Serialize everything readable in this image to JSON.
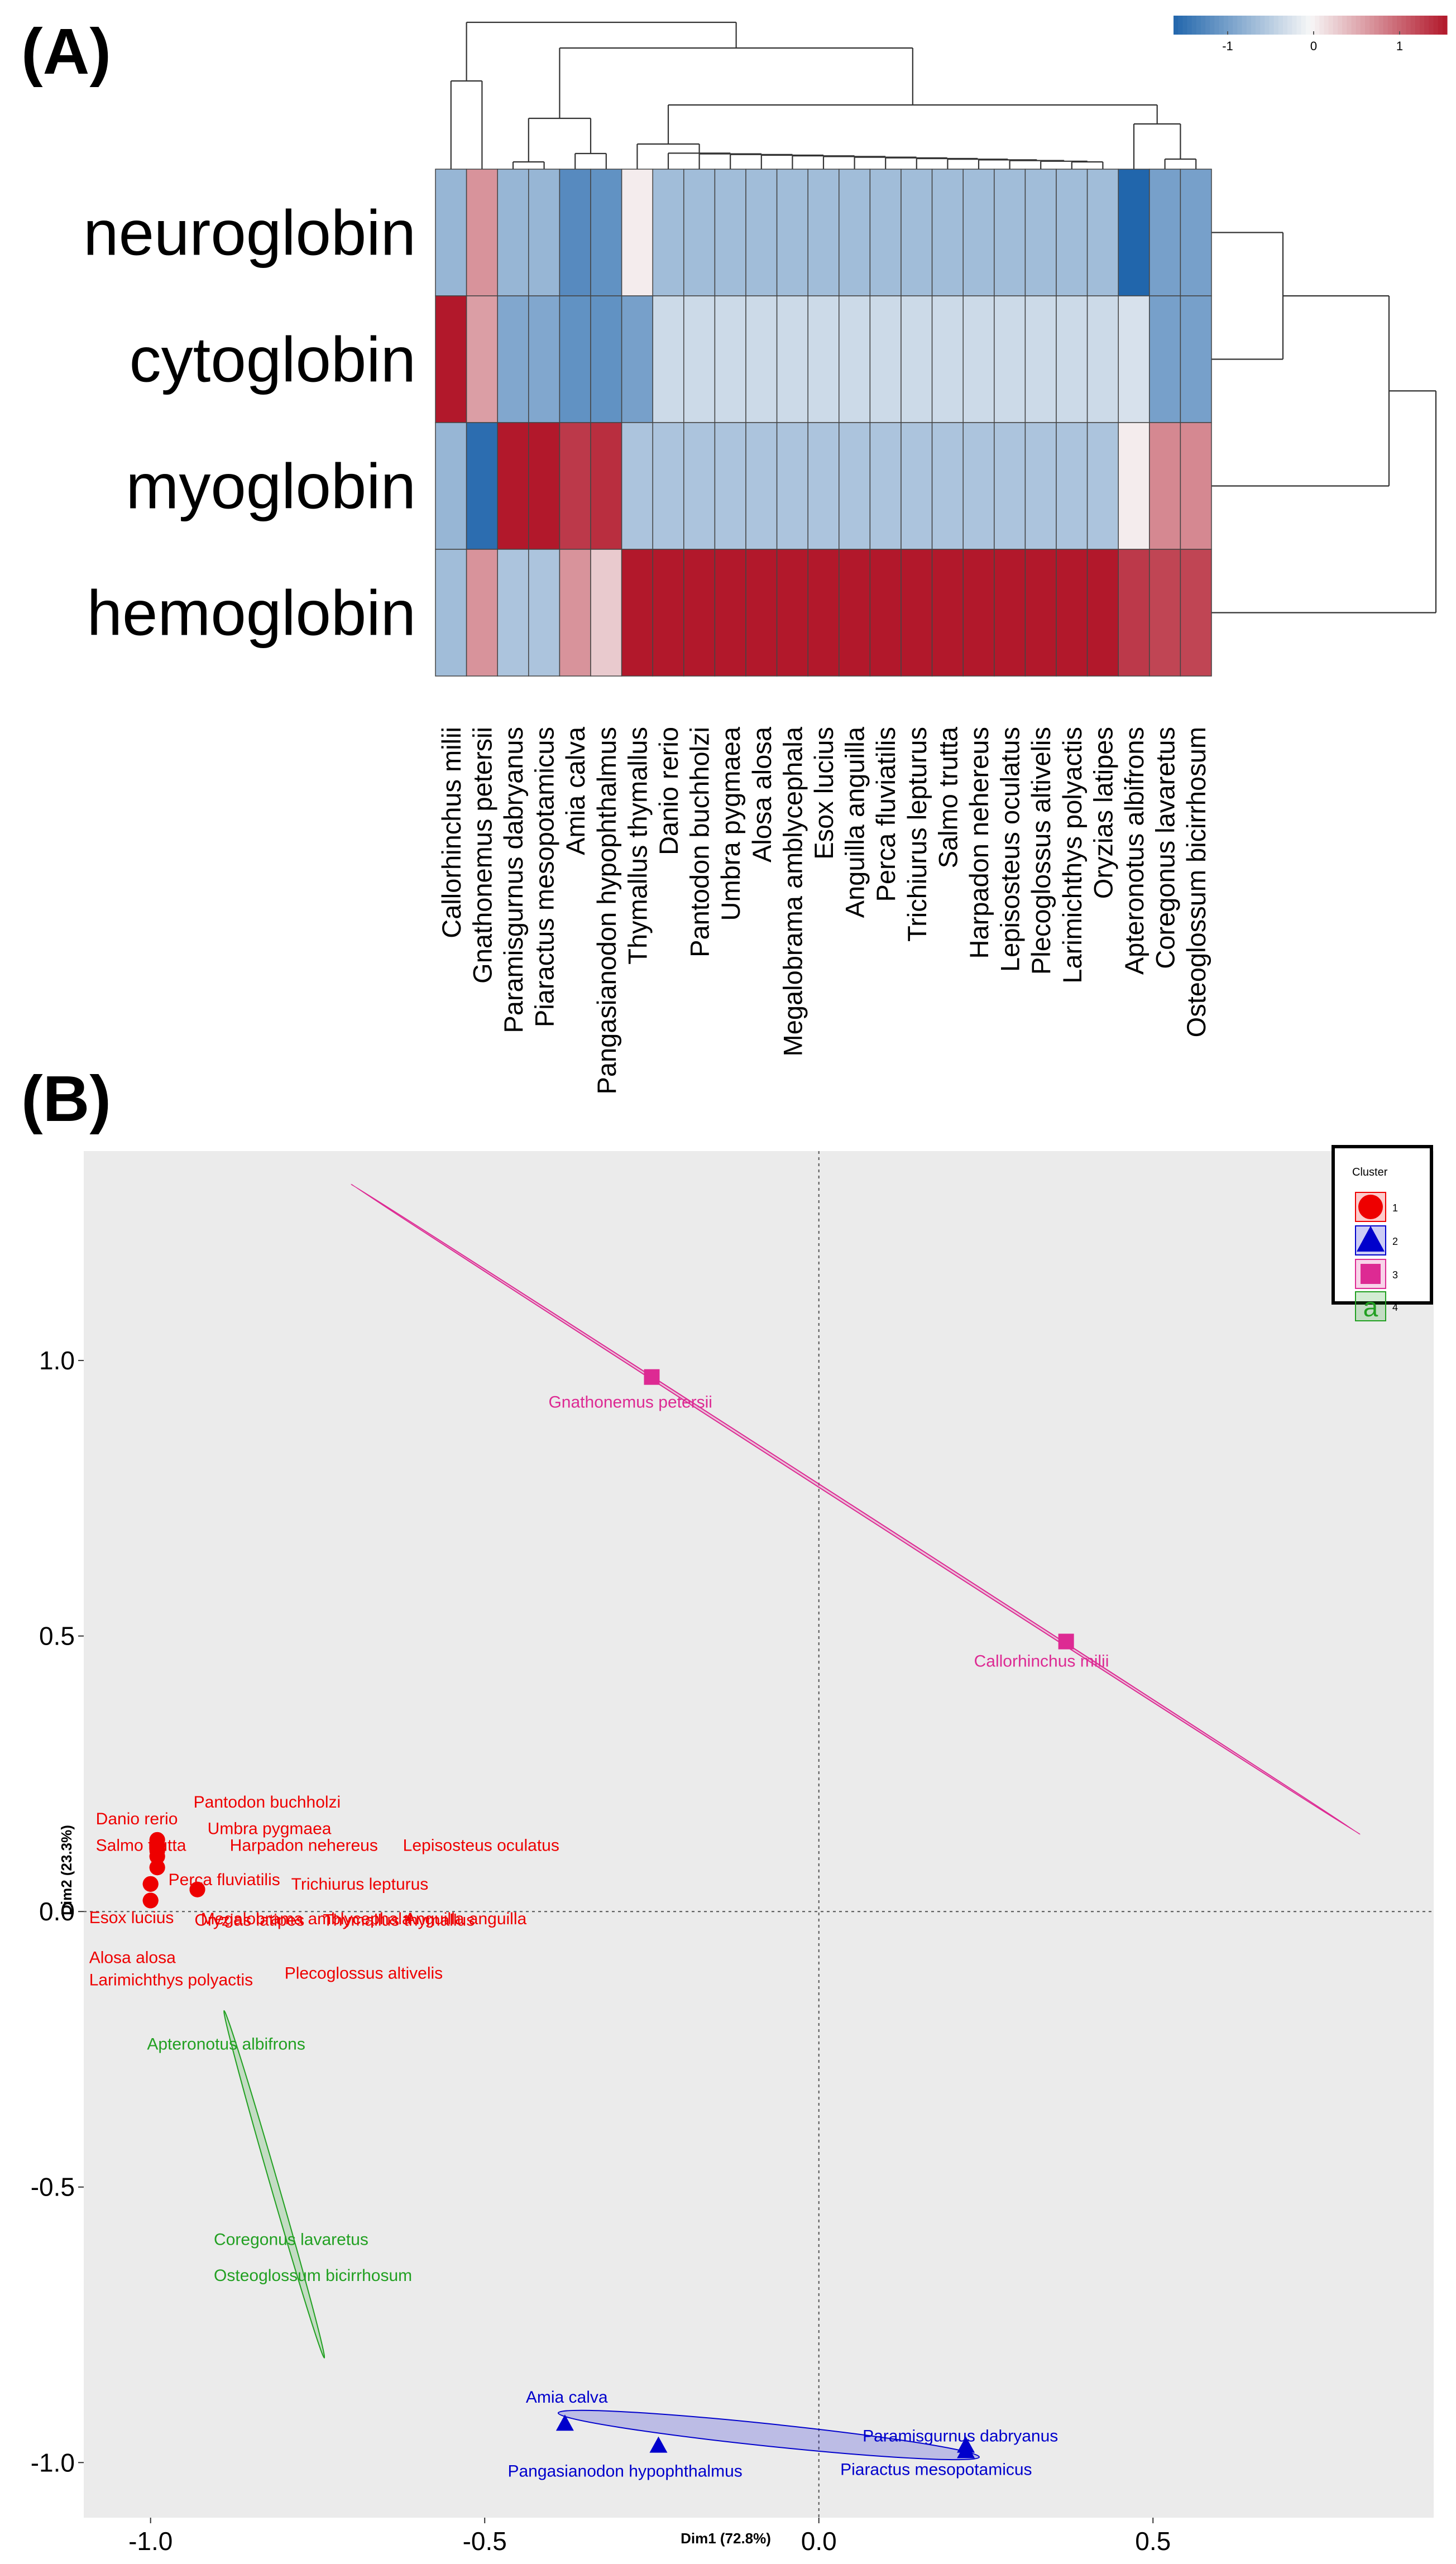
{
  "panel_labels": {
    "a": "(A)",
    "b": "(B)"
  },
  "colors": {
    "low": "#2166ac",
    "mid": "#f7f7f7",
    "high": "#b2182b",
    "cluster_1": "#ee0000",
    "cluster_2": "#0000cc",
    "cluster_3": "#dd2a93",
    "cluster_4": "#22a022",
    "plot_bg": "#ebebeb"
  },
  "chart_data": [
    {
      "type": "heatmap",
      "title": "",
      "rows": [
        "neuroglobin",
        "cytoglobin",
        "myoglobin",
        "hemoglobin"
      ],
      "columns": [
        "Callorhinchus milii",
        "Gnathonemus petersii",
        "Paramisgurnus dabryanus",
        "Piaractus mesopotamicus",
        "Amia calva",
        "Pangasianodon hypophthalmus",
        "Thymallus thymallus",
        "Danio rerio",
        "Pantodon buchholzi",
        "Umbra pygmaea",
        "Alosa alosa",
        "Megalobrama amblycephala",
        "Esox lucius",
        "Anguilla anguilla",
        "Perca fluviatilis",
        "Trichiurus lepturus",
        "Salmo trutta",
        "Harpadon nehereus",
        "Lepisosteus oculatus",
        "Plecoglossus altivelis",
        "Larimichthys polyactis",
        "Oryzias latipes",
        "Apteronotus albifrons",
        "Coregonus lavaretus",
        "Osteoglossum bicirrhosum"
      ],
      "values": [
        [
          -0.45,
          0.45,
          -0.45,
          -0.45,
          -0.75,
          -0.7,
          0.05,
          -0.4,
          -0.4,
          -0.4,
          -0.4,
          -0.4,
          -0.4,
          -0.4,
          -0.4,
          -0.4,
          -0.4,
          -0.4,
          -0.4,
          -0.4,
          -0.4,
          -0.4,
          -1.0,
          -0.6,
          -0.6
        ],
        [
          1.0,
          0.4,
          -0.55,
          -0.55,
          -0.7,
          -0.7,
          -0.6,
          -0.2,
          -0.2,
          -0.2,
          -0.2,
          -0.2,
          -0.2,
          -0.2,
          -0.2,
          -0.2,
          -0.2,
          -0.2,
          -0.2,
          -0.2,
          -0.2,
          -0.2,
          -0.15,
          -0.6,
          -0.6
        ],
        [
          -0.45,
          -0.95,
          1.0,
          1.0,
          0.85,
          0.9,
          -0.35,
          -0.35,
          -0.35,
          -0.35,
          -0.35,
          -0.35,
          -0.35,
          -0.35,
          -0.35,
          -0.35,
          -0.35,
          -0.35,
          -0.35,
          -0.35,
          -0.35,
          -0.35,
          0.05,
          0.5,
          0.5
        ],
        [
          -0.4,
          0.45,
          -0.35,
          -0.35,
          0.45,
          0.2,
          1.0,
          1.0,
          1.0,
          1.0,
          1.0,
          1.0,
          1.0,
          1.0,
          1.0,
          1.0,
          1.0,
          1.0,
          1.0,
          1.0,
          1.0,
          1.0,
          0.85,
          0.8,
          0.8
        ]
      ],
      "colorbar": {
        "ticks": [
          "-1",
          "0",
          "1"
        ],
        "range": [
          -1,
          1
        ]
      }
    },
    {
      "type": "scatter",
      "title": "",
      "xlabel": "Dim1 (72.8%)",
      "ylabel": "Dim2 (23.3%)",
      "xlim": [
        -1.1,
        0.92
      ],
      "ylim": [
        -1.1,
        1.38
      ],
      "xticks": [
        "-1.0",
        "-0.5",
        "0.0",
        "0.5"
      ],
      "yticks": [
        "1.0",
        "0.5",
        "0.0",
        "-0.5",
        "-1.0"
      ],
      "legend": {
        "title": "Cluster",
        "position": "top-right",
        "entries": [
          "1",
          "2",
          "3",
          "4"
        ]
      },
      "series": [
        {
          "name": "1",
          "marker": "circle",
          "points": [
            {
              "label": "Danio rerio",
              "x": -0.99,
              "y": 0.13
            },
            {
              "label": "Pantodon buchholzi",
              "x": -0.99,
              "y": 0.13
            },
            {
              "label": "Umbra pygmaea",
              "x": -0.99,
              "y": 0.12
            },
            {
              "label": "Salmo trutta",
              "x": -0.99,
              "y": 0.11
            },
            {
              "label": "Harpadon nehereus",
              "x": -0.99,
              "y": 0.1
            },
            {
              "label": "Lepisosteus oculatus",
              "x": -0.99,
              "y": 0.1
            },
            {
              "label": "Perca fluviatilis",
              "x": -0.99,
              "y": 0.08
            },
            {
              "label": "Trichiurus lepturus",
              "x": -0.99,
              "y": 0.08
            },
            {
              "label": "Esox lucius",
              "x": -1.0,
              "y": 0.05
            },
            {
              "label": "Megalobrama amblycephala",
              "x": -1.0,
              "y": 0.05
            },
            {
              "label": "Anguilla anguilla",
              "x": -1.0,
              "y": 0.05
            },
            {
              "label": "Oryzias latipes",
              "x": -0.93,
              "y": 0.04
            },
            {
              "label": "Thymallus thymallus",
              "x": -0.93,
              "y": 0.04
            },
            {
              "label": "Alosa alosa",
              "x": -1.0,
              "y": 0.02
            },
            {
              "label": "Larimichthys polyactis",
              "x": -1.0,
              "y": 0.02
            },
            {
              "label": "Plecoglossus altivelis",
              "x": -1.0,
              "y": 0.02
            }
          ]
        },
        {
          "name": "2",
          "marker": "triangle",
          "points": [
            {
              "label": "Amia calva",
              "x": -0.38,
              "y": -0.93
            },
            {
              "label": "Pangasianodon hypophthalmus",
              "x": -0.24,
              "y": -0.97
            },
            {
              "label": "Paramisgurnus dabryanus",
              "x": 0.22,
              "y": -0.97
            },
            {
              "label": "Piaractus mesopotamicus",
              "x": 0.22,
              "y": -0.98
            }
          ]
        },
        {
          "name": "3",
          "marker": "square",
          "points": [
            {
              "label": "Gnathonemus petersii",
              "x": -0.25,
              "y": 0.97
            },
            {
              "label": "Callorhinchus milii",
              "x": 0.37,
              "y": 0.49
            }
          ]
        },
        {
          "name": "4",
          "marker": "none",
          "points": [
            {
              "label": "Apteronotus albifrons",
              "x": -0.88,
              "y": -0.22
            },
            {
              "label": "Coregonus lavaretus",
              "x": -0.78,
              "y": -0.61
            },
            {
              "label": "Osteoglossum bicirrhosum",
              "x": -0.78,
              "y": -0.62
            }
          ]
        }
      ],
      "ellipses": [
        {
          "cluster": "3",
          "from": [
            -0.7,
            1.32
          ],
          "to": [
            0.81,
            0.14
          ]
        },
        {
          "cluster": "4",
          "from": [
            -0.89,
            -0.18
          ],
          "to": [
            -0.74,
            -0.81
          ]
        },
        {
          "cluster": "2",
          "from": [
            -0.39,
            -0.91
          ],
          "to": [
            0.24,
            -0.99
          ]
        }
      ]
    }
  ]
}
